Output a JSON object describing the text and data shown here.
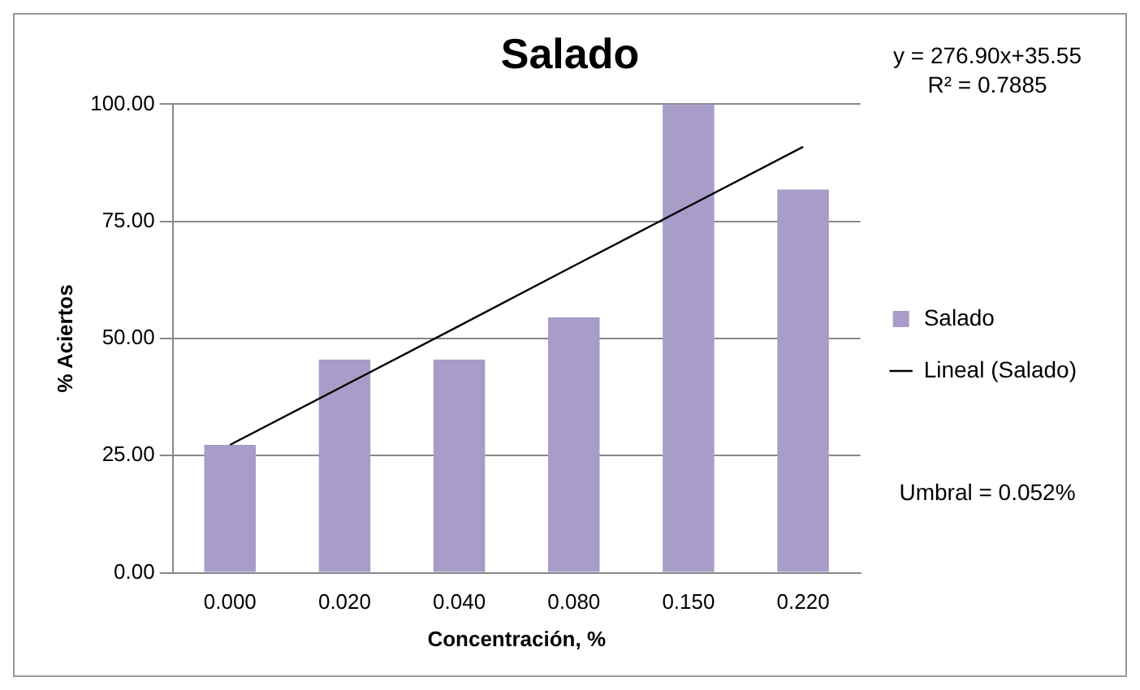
{
  "chart_data": {
    "type": "bar",
    "title": "Salado",
    "xlabel": "Concentración, %",
    "ylabel": "% Aciertos",
    "categories": [
      "0.000",
      "0.020",
      "0.040",
      "0.080",
      "0.150",
      "0.220"
    ],
    "series": [
      {
        "name": "Salado",
        "color": "#a89cc8",
        "values": [
          27.3,
          45.5,
          45.5,
          54.5,
          100,
          81.8
        ]
      },
      {
        "name": "Lineal (Salado)",
        "type": "line",
        "color": "#000000",
        "marker": "none",
        "values": [
          27.3,
          40,
          52.7,
          65.5,
          78.2,
          90.9
        ]
      }
    ],
    "ylim": [
      0,
      100
    ],
    "yticks": [
      {
        "value": 0,
        "label": "0.00"
      },
      {
        "value": 25,
        "label": "25.00"
      },
      {
        "value": 50,
        "label": "50.00"
      },
      {
        "value": 75,
        "label": "75.00"
      },
      {
        "value": 100,
        "label": "100.00"
      }
    ],
    "grid": "y",
    "legend": "right",
    "annotations": [
      "y = 276.90x+35.55\nR² = 0.7885",
      "Umbral = 0.052%"
    ]
  }
}
